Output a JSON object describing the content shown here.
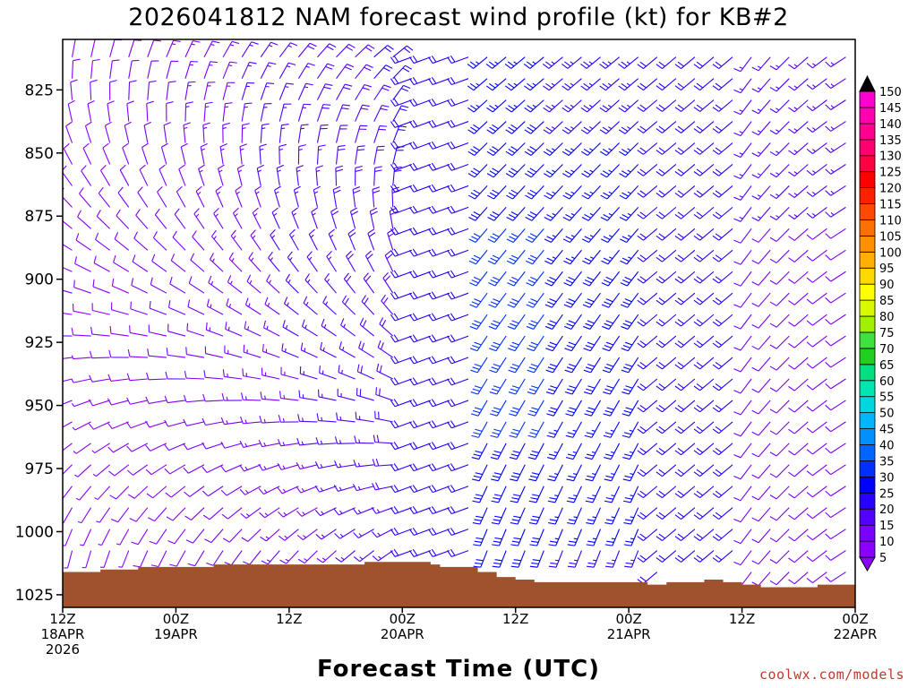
{
  "title": "2026041812 NAM forecast wind profile (kt) for KB#2",
  "xlabel": "Forecast Time (UTC)",
  "credit": "coolwx.com/models",
  "chart_data": {
    "type": "wind-barb time-height section",
    "ylabel": "",
    "y_axis": {
      "ticks": [
        825,
        850,
        875,
        900,
        925,
        950,
        975,
        1000,
        1025
      ],
      "range": [
        805,
        1030
      ],
      "inverted": true
    },
    "x_axis": {
      "range_hours": [
        0,
        84
      ],
      "ticks": [
        {
          "hour": 0,
          "line1": "12Z",
          "line2": "18APR",
          "line3": "2026"
        },
        {
          "hour": 12,
          "line1": "00Z",
          "line2": "19APR",
          "line3": ""
        },
        {
          "hour": 24,
          "line1": "12Z",
          "line2": "",
          "line3": ""
        },
        {
          "hour": 36,
          "line1": "00Z",
          "line2": "20APR",
          "line3": ""
        },
        {
          "hour": 48,
          "line1": "12Z",
          "line2": "",
          "line3": ""
        },
        {
          "hour": 60,
          "line1": "00Z",
          "line2": "21APR",
          "line3": ""
        },
        {
          "hour": 72,
          "line1": "12Z",
          "line2": "",
          "line3": ""
        },
        {
          "hour": 84,
          "line1": "00Z",
          "line2": "22APR",
          "line3": ""
        }
      ]
    },
    "colorbar": {
      "values": [
        5,
        10,
        15,
        20,
        25,
        30,
        35,
        40,
        45,
        50,
        55,
        60,
        65,
        70,
        75,
        80,
        85,
        90,
        95,
        100,
        105,
        110,
        115,
        120,
        125,
        130,
        135,
        140,
        145,
        150
      ],
      "colors": [
        "#8a00ff",
        "#7a00ff",
        "#5200ff",
        "#2800ff",
        "#0000ff",
        "#0030ff",
        "#0066ff",
        "#0090ff",
        "#00b6ff",
        "#00d6e0",
        "#00e6b0",
        "#00e080",
        "#20d020",
        "#40e040",
        "#a0f000",
        "#d8f800",
        "#ffff00",
        "#ffd800",
        "#ffb000",
        "#ff9000",
        "#ff7000",
        "#ff4800",
        "#ff2000",
        "#ff0000",
        "#ff0040",
        "#ff0070",
        "#ff0090",
        "#ff00b0",
        "#ff00d0",
        "#ff00ff"
      ]
    },
    "surface_pressure": [
      {
        "hour": 0,
        "p": 1016
      },
      {
        "hour": 4,
        "p": 1015
      },
      {
        "hour": 8,
        "p": 1014
      },
      {
        "hour": 12,
        "p": 1014
      },
      {
        "hour": 16,
        "p": 1013
      },
      {
        "hour": 20,
        "p": 1013
      },
      {
        "hour": 24,
        "p": 1013
      },
      {
        "hour": 28,
        "p": 1013
      },
      {
        "hour": 31,
        "p": 1013
      },
      {
        "hour": 32,
        "p": 1012
      },
      {
        "hour": 36,
        "p": 1012
      },
      {
        "hour": 38,
        "p": 1012
      },
      {
        "hour": 39,
        "p": 1013
      },
      {
        "hour": 40,
        "p": 1014
      },
      {
        "hour": 44,
        "p": 1016
      },
      {
        "hour": 46,
        "p": 1018
      },
      {
        "hour": 48,
        "p": 1019
      },
      {
        "hour": 50,
        "p": 1020
      },
      {
        "hour": 54,
        "p": 1020
      },
      {
        "hour": 60,
        "p": 1020
      },
      {
        "hour": 62,
        "p": 1021
      },
      {
        "hour": 64,
        "p": 1020
      },
      {
        "hour": 68,
        "p": 1019
      },
      {
        "hour": 70,
        "p": 1020
      },
      {
        "hour": 72,
        "p": 1021
      },
      {
        "hour": 74,
        "p": 1022
      },
      {
        "hour": 76,
        "p": 1022
      },
      {
        "hour": 80,
        "p": 1021
      },
      {
        "hour": 84,
        "p": 1021
      }
    ]
  }
}
